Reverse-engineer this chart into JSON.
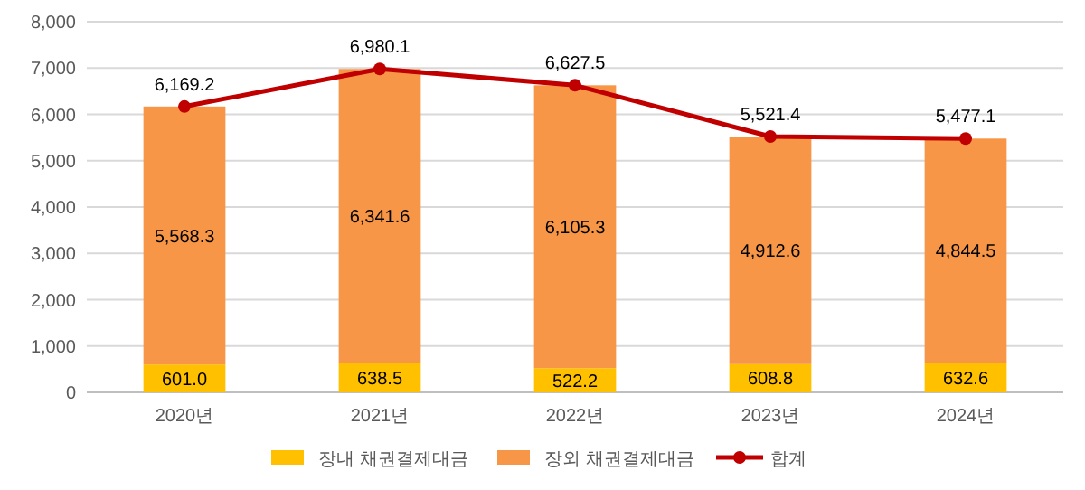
{
  "chart_data": {
    "type": "bar",
    "stacked": true,
    "categories": [
      "2020년",
      "2021년",
      "2022년",
      "2023년",
      "2024년"
    ],
    "series": [
      {
        "name": "장내 채권결제대금",
        "color": "#ffc000",
        "values": [
          601.0,
          638.5,
          522.2,
          608.8,
          632.6
        ],
        "value_labels": [
          "601.0",
          "638.5",
          "522.2",
          "608.8",
          "632.6"
        ]
      },
      {
        "name": "장외 채권결제대금",
        "color": "#f79646",
        "values": [
          5568.3,
          6341.6,
          6105.3,
          4912.6,
          4844.5
        ],
        "value_labels": [
          "5,568.3",
          "6,341.6",
          "6,105.3",
          "4,912.6",
          "4,844.5"
        ]
      },
      {
        "name": "합계",
        "type": "line",
        "color": "#c00000",
        "values": [
          6169.2,
          6980.1,
          6627.5,
          5521.4,
          5477.1
        ],
        "value_labels": [
          "6,169.2",
          "6,980.1",
          "6,627.5",
          "5,521.4",
          "5,477.1"
        ]
      }
    ],
    "ylim": [
      0,
      8000
    ],
    "yticks": [
      0,
      {
        "value": 1000,
        "label": "1,000"
      },
      {
        "value": 2000,
        "label": "2,000"
      },
      {
        "value": 3000,
        "label": "3,000"
      },
      {
        "value": 4000,
        "label": "4,000"
      },
      {
        "value": 5000,
        "label": "5,000"
      },
      {
        "value": 6000,
        "label": "6,000"
      },
      {
        "value": 7000,
        "label": "7,000"
      },
      {
        "value": 8000,
        "label": "8,000"
      }
    ],
    "grid": "y",
    "legend": "bottom",
    "marker": "circle",
    "line_style": "solid"
  }
}
